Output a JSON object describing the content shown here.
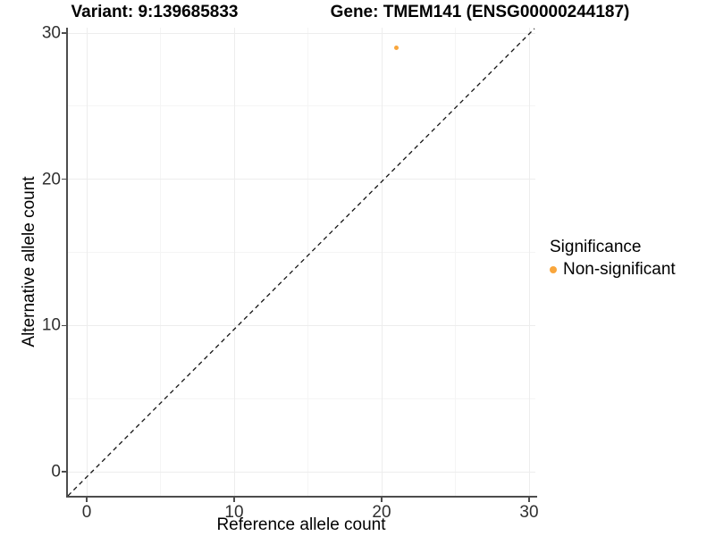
{
  "chart_data": {
    "type": "scatter",
    "title_variant": "Variant: 9:139685833",
    "title_gene": "Gene: TMEM141 (ENSG00000244187)",
    "xlabel": "Reference allele count",
    "ylabel": "Alternative allele count",
    "xlim": [
      -1.3,
      30.4
    ],
    "ylim": [
      -1.6,
      30.4
    ],
    "x_ticks": [
      0,
      10,
      20,
      30
    ],
    "y_ticks": [
      0,
      10,
      20,
      30
    ],
    "grid": "major every 10, minor every 5, light gray on white",
    "reference_line": {
      "type": "identity y=x",
      "style": "dashed",
      "color": "#141414"
    },
    "series": [
      {
        "name": "Non-significant",
        "color": "#F9A63C",
        "points": [
          {
            "x": 21,
            "y": 29
          }
        ]
      }
    ],
    "legend": {
      "title": "Significance",
      "position": "right",
      "items": [
        {
          "label": "Non-significant",
          "color": "#F9A63C",
          "marker": "circle"
        }
      ]
    }
  }
}
